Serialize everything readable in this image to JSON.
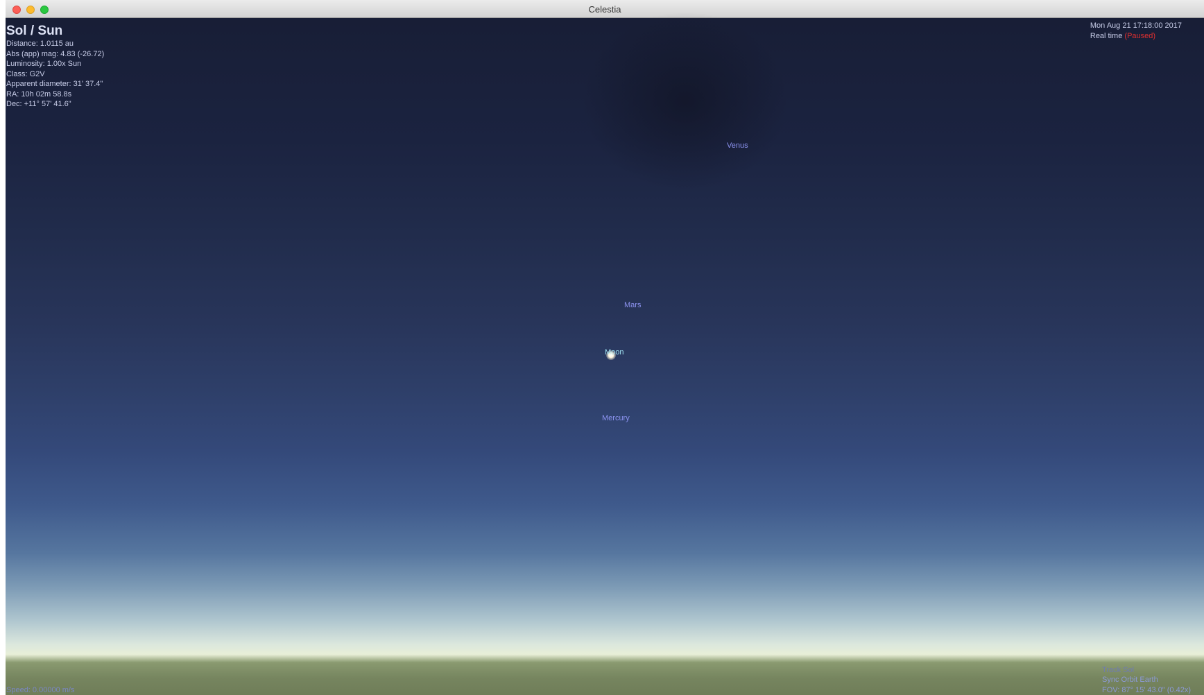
{
  "window": {
    "title": "Celestia"
  },
  "selection": {
    "name": "Sol / Sun",
    "distance": "Distance: 1.0115 au",
    "magnitude": "Abs (app) mag: 4.83 (-26.72)",
    "luminosity": "Luminosity: 1.00x Sun",
    "class": "Class: G2V",
    "apparent_diameter": "Apparent diameter: 31' 37.4\"",
    "ra": "RA: 10h 02m 58.8s",
    "dec": "Dec: +11° 57' 41.6\""
  },
  "time": {
    "datetime": "Mon Aug 21 17:18:00 2017",
    "mode": "Real time",
    "state": "(Paused)"
  },
  "status": {
    "speed": "Speed: 0.00000 m/s",
    "track": "Track Sol",
    "sync": "Sync Orbit Earth",
    "fov": "FOV: 87° 15' 43.0\" (0.42x)"
  },
  "labels": {
    "venus": "Venus",
    "mars": "Mars",
    "moon": "Moon",
    "mercury": "Mercury"
  },
  "colors": {
    "paused": "#e03030",
    "planet_label": "#8c93f0",
    "moon_label": "#9ee0f0"
  }
}
